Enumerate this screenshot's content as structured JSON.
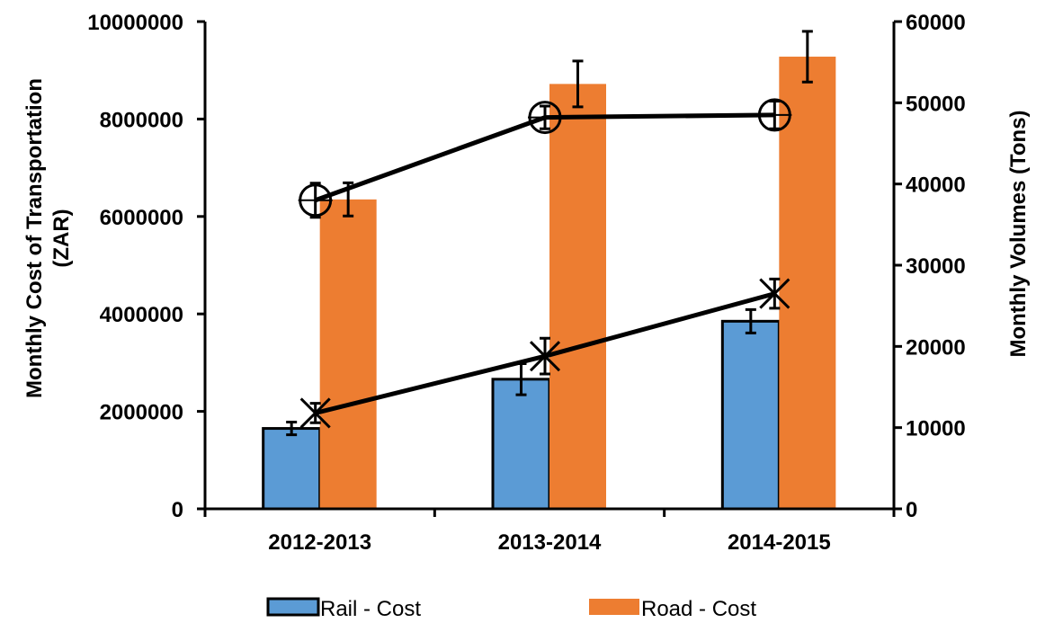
{
  "chart_data": {
    "type": "bar",
    "title": "",
    "categories": [
      "2012-2013",
      "2013-2014",
      "2014-2015"
    ],
    "ylabel": "Monthly Cost of Transportation (ZAR)",
    "ylabel_lines": [
      "Monthly Cost of Transportation",
      "(ZAR)"
    ],
    "y2label": "Monthly Volumes (Tons)",
    "ylim": [
      0,
      10000000
    ],
    "y2lim": [
      0,
      60000
    ],
    "yticks": [
      "0",
      "2000000",
      "4000000",
      "6000000",
      "8000000",
      "10000000"
    ],
    "y2ticks": [
      "0",
      "10000",
      "20000",
      "30000",
      "40000",
      "50000",
      "60000"
    ],
    "grid": false,
    "legend_position": "bottom",
    "bar_series": [
      {
        "name": "Rail - Cost",
        "color": "#5b9bd5",
        "outlined": true,
        "values": [
          1650000,
          2660000,
          3850000
        ],
        "errors": [
          130000,
          320000,
          240000
        ]
      },
      {
        "name": "Road - Cost",
        "color": "#ed7d31",
        "outlined": false,
        "values": [
          6350000,
          8720000,
          9280000
        ],
        "errors": [
          340000,
          470000,
          520000
        ]
      }
    ],
    "line_series": [
      {
        "axis": "right",
        "marker": "circle-cross",
        "values": [
          38000,
          48200,
          48500
        ],
        "errors": [
          2100,
          1400,
          1700
        ]
      },
      {
        "axis": "right",
        "marker": "x",
        "values": [
          11800,
          18800,
          26500
        ],
        "errors": [
          1200,
          2200,
          1800
        ]
      }
    ]
  }
}
